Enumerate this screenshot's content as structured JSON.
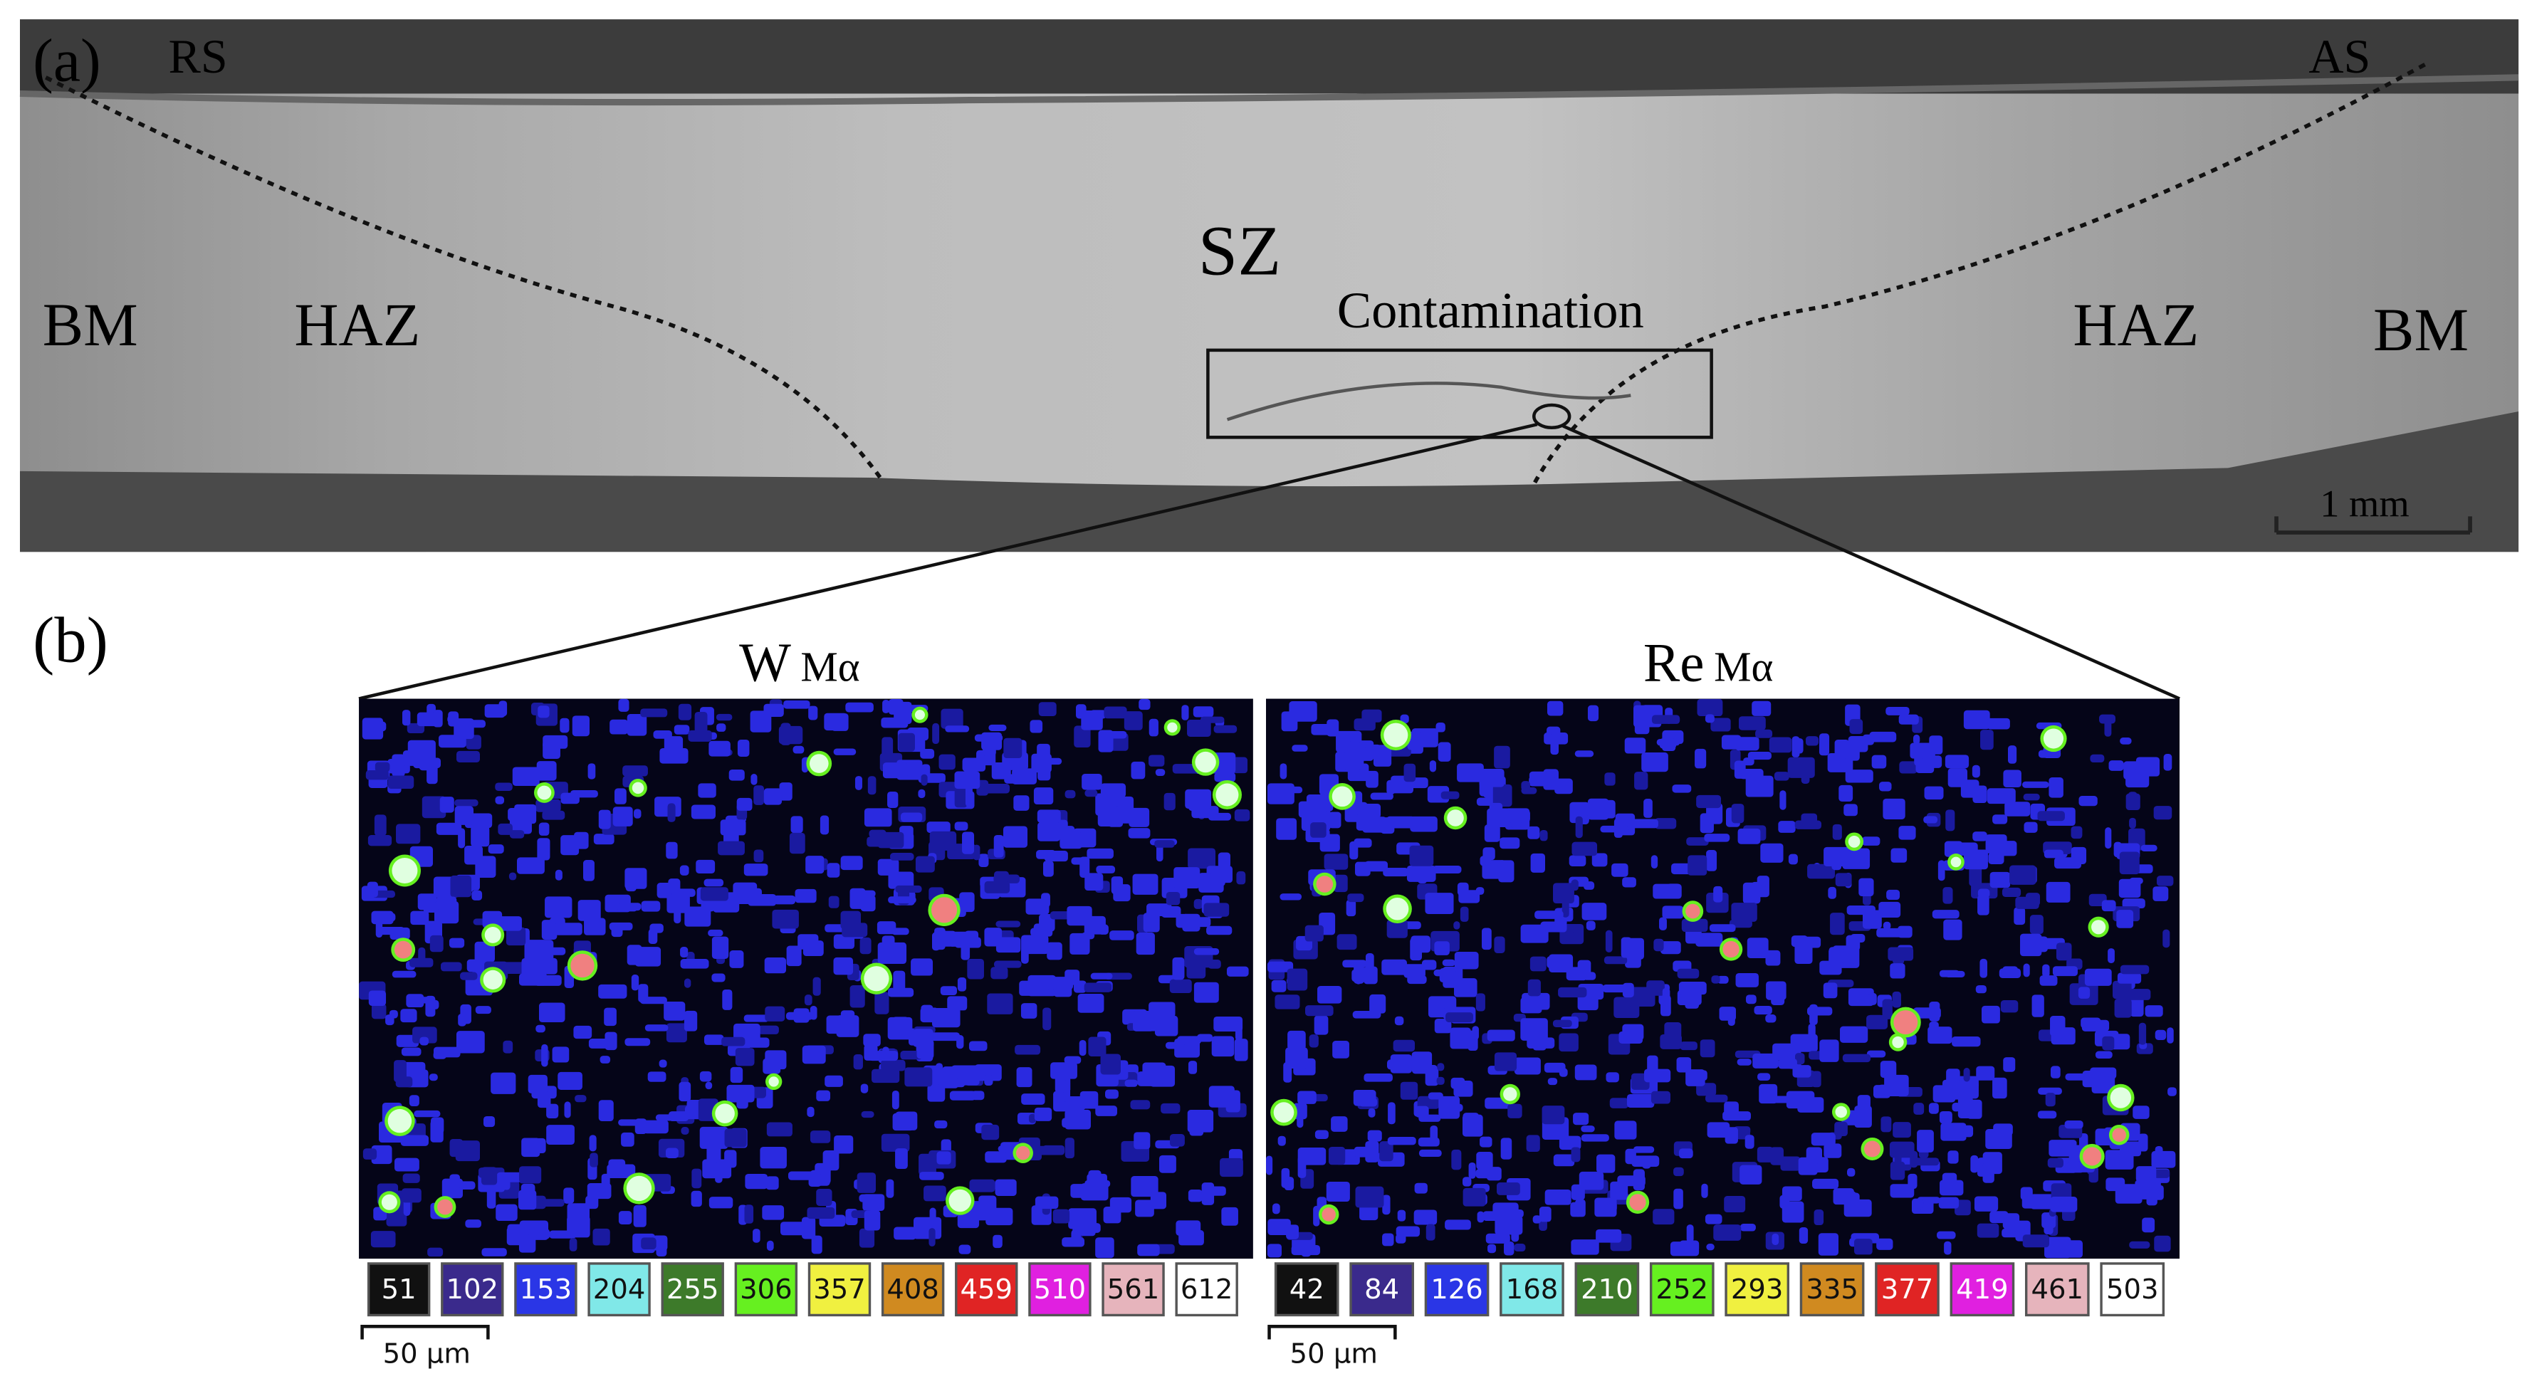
{
  "panel_a": {
    "label": "(a)",
    "rs": "RS",
    "as": "AS",
    "sz": "SZ",
    "contamination": "Contamination",
    "bm_left": "BM",
    "haz_left": "HAZ",
    "haz_right": "HAZ",
    "bm_right": "BM",
    "scale_bar": "1 mm"
  },
  "panel_b": {
    "label": "(b)",
    "maps": [
      {
        "element": "W",
        "line": "Mα",
        "scale": [
          51,
          102,
          153,
          204,
          255,
          306,
          357,
          408,
          459,
          510,
          561,
          612
        ],
        "scale_bar": "50 μm"
      },
      {
        "element": "Re",
        "line": "Mα",
        "scale": [
          42,
          84,
          126,
          168,
          210,
          252,
          293,
          335,
          377,
          419,
          461,
          503
        ],
        "scale_bar": "50 μm"
      }
    ]
  }
}
